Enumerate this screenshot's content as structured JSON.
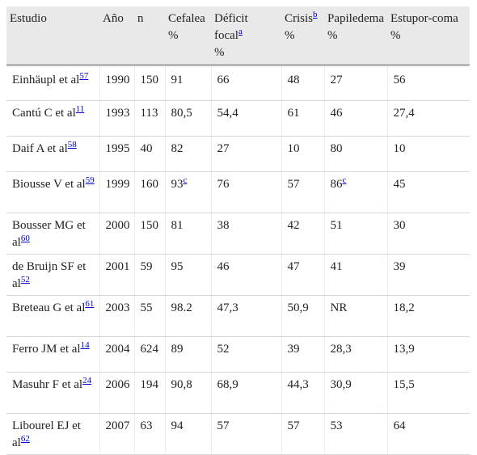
{
  "table": {
    "headers": [
      {
        "label": "Estudio",
        "sub": "",
        "footnote": ""
      },
      {
        "label": "Año",
        "sub": "",
        "footnote": ""
      },
      {
        "label": "n",
        "sub": "",
        "footnote": ""
      },
      {
        "label": "Cefalea",
        "sub": "%",
        "footnote": ""
      },
      {
        "label": "Déficit focal",
        "sub": "%",
        "footnote": "a"
      },
      {
        "label": "Crisis",
        "sub": "%",
        "footnote": "b"
      },
      {
        "label": "Papiledema",
        "sub": "%",
        "footnote": ""
      },
      {
        "label": "Estupor-coma",
        "sub": "%",
        "footnote": ""
      }
    ],
    "rows": [
      {
        "study": "Einhäupl et al",
        "ref": "57",
        "year": "1990",
        "n": "150",
        "cefalea": "91",
        "cefalea_note": "",
        "deficit": "66",
        "crisis": "48",
        "papiledema": "27",
        "papiledema_note": "",
        "estupor": "56"
      },
      {
        "study": "Cantú C et al",
        "ref": "11",
        "year": "1993",
        "n": "113",
        "cefalea": "80,5",
        "cefalea_note": "",
        "deficit": "54,4",
        "crisis": "61",
        "papiledema": "46",
        "papiledema_note": "",
        "estupor": "27,4"
      },
      {
        "study": "Daif A et al",
        "ref": "58",
        "year": "1995",
        "n": "40",
        "cefalea": "82",
        "cefalea_note": "",
        "deficit": "27",
        "crisis": "10",
        "papiledema": "80",
        "papiledema_note": "",
        "estupor": "10"
      },
      {
        "study": "Biousse V et al",
        "ref": "59",
        "year": "1999",
        "n": "160",
        "cefalea": "93",
        "cefalea_note": "c",
        "deficit": "76",
        "crisis": "57",
        "papiledema": "86",
        "papiledema_note": "c",
        "estupor": "45"
      },
      {
        "study": "Bousser MG et al",
        "ref": "60",
        "year": "2000",
        "n": "150",
        "cefalea": "81",
        "cefalea_note": "",
        "deficit": "38",
        "crisis": "42",
        "papiledema": "51",
        "papiledema_note": "",
        "estupor": "30"
      },
      {
        "study": "de Bruijn SF et al",
        "ref": "52",
        "year": "2001",
        "n": "59",
        "cefalea": "95",
        "cefalea_note": "",
        "deficit": "46",
        "crisis": "47",
        "papiledema": "41",
        "papiledema_note": "",
        "estupor": "39"
      },
      {
        "study": "Breteau G et al",
        "ref": "61",
        "year": "2003",
        "n": "55",
        "cefalea": "98.2",
        "cefalea_note": "",
        "deficit": "47,3",
        "crisis": "50,9",
        "papiledema": "NR",
        "papiledema_note": "",
        "estupor": "18,2"
      },
      {
        "study": "Ferro JM et al",
        "ref": "14",
        "year": "2004",
        "n": "624",
        "cefalea": "89",
        "cefalea_note": "",
        "deficit": "52",
        "crisis": "39",
        "papiledema": "28,3",
        "papiledema_note": "",
        "estupor": "13,9"
      },
      {
        "study": "Masuhr F et al",
        "ref": "24",
        "year": "2006",
        "n": "194",
        "cefalea": "90,8",
        "cefalea_note": "",
        "deficit": "68,9",
        "crisis": "44,3",
        "papiledema": "30,9",
        "papiledema_note": "",
        "estupor": "15,5"
      },
      {
        "study": "Libourel EJ et al",
        "ref": "62",
        "year": "2007",
        "n": "63",
        "cefalea": "94",
        "cefalea_note": "",
        "deficit": "57",
        "crisis": "57",
        "papiledema": "53",
        "papiledema_note": "",
        "estupor": "64"
      }
    ]
  },
  "colors": {
    "header_bg": "#e9e9e9",
    "link": "#0000cc",
    "text": "#222222"
  }
}
